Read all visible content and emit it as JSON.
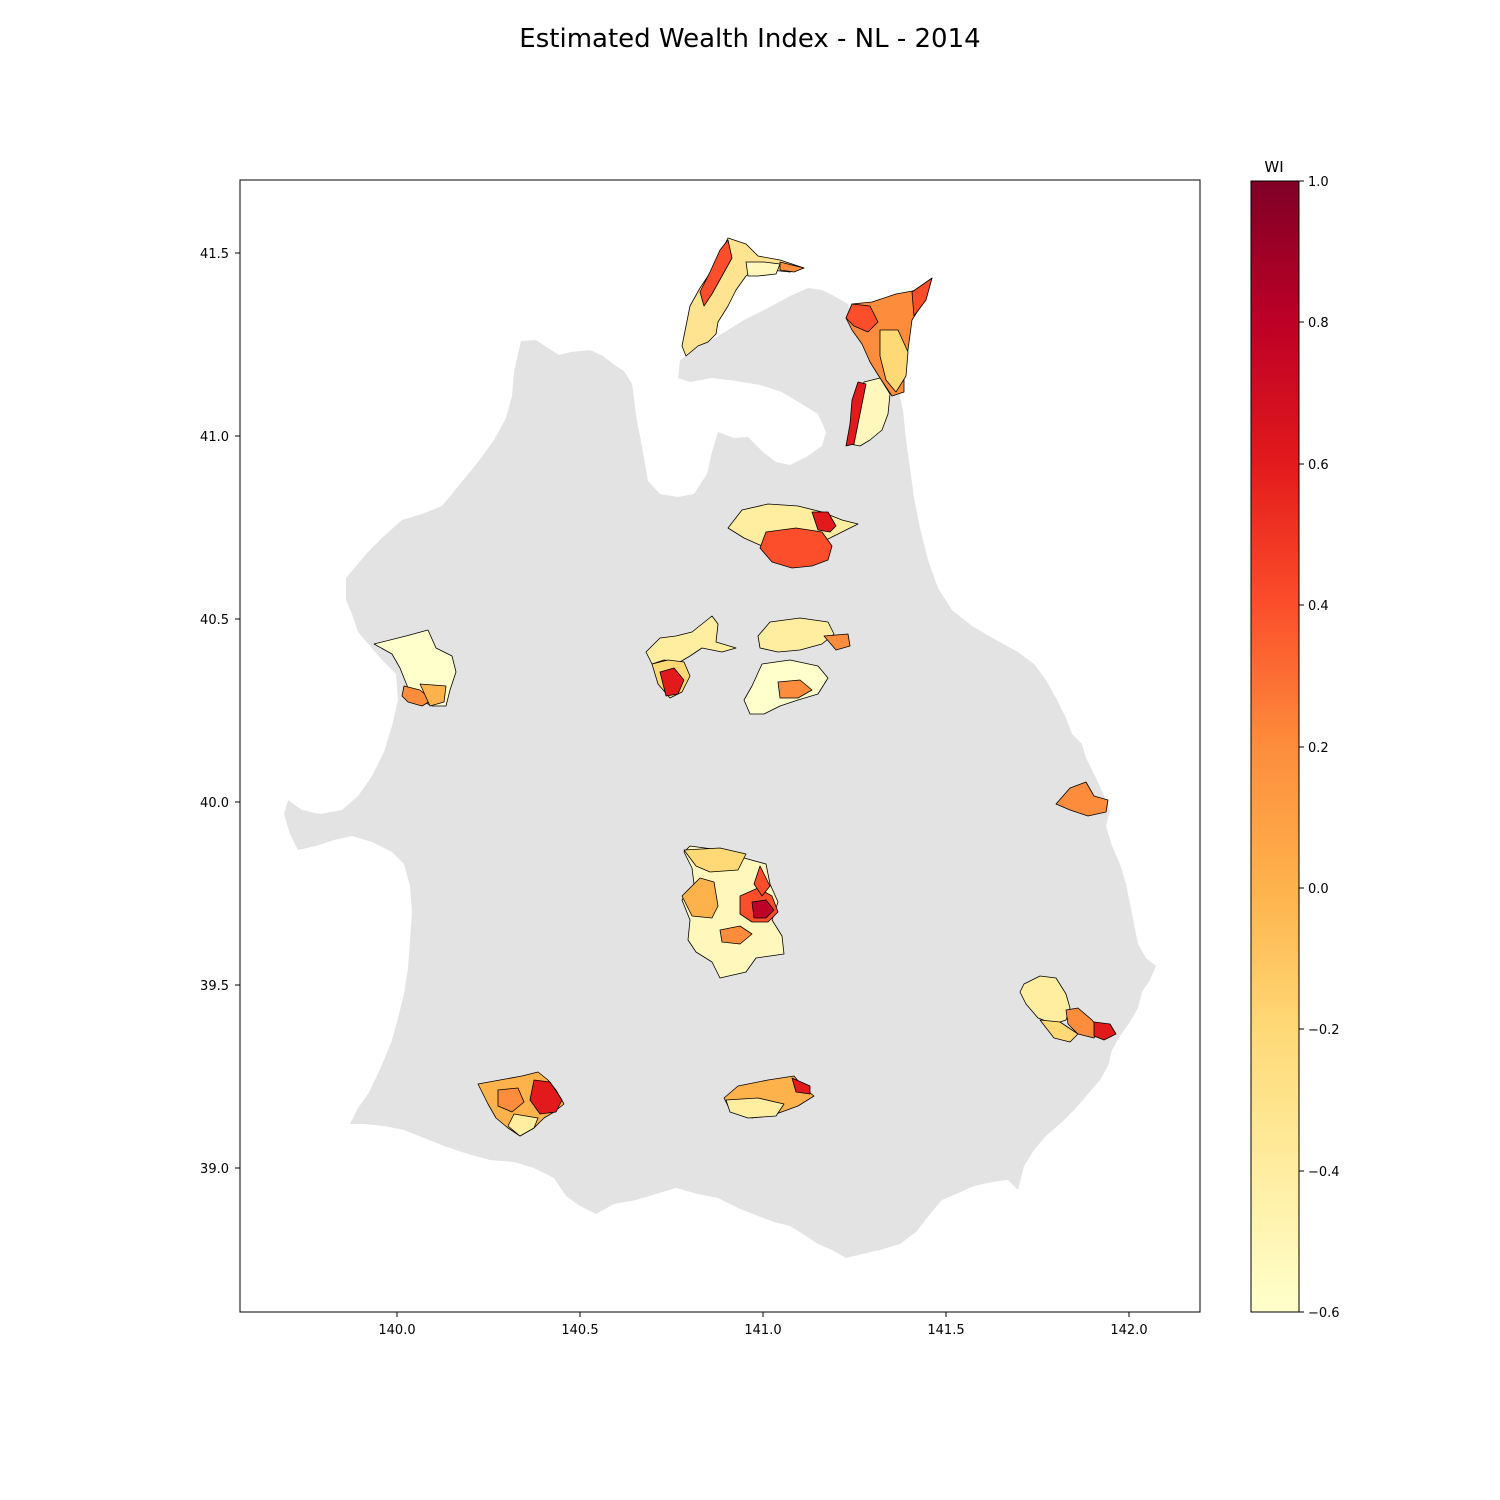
{
  "title": "Estimated Wealth Index - NL - 2014",
  "map": {
    "x_ticks": [
      "140.0",
      "140.5",
      "141.0",
      "141.5",
      "142.0"
    ],
    "y_ticks": [
      "41.5",
      "41.0",
      "40.5",
      "40.0",
      "39.5",
      "39.0"
    ],
    "xlim": [
      139.57,
      142.19
    ],
    "ylim": [
      38.62,
      41.7
    ],
    "land_color": "#e3e3e3",
    "outline_color": "#000000"
  },
  "colorbar": {
    "title": "WI",
    "ticks": [
      "1.0",
      "0.8",
      "0.6",
      "0.4",
      "0.2",
      "0.0",
      "−0.2",
      "−0.4",
      "−0.6"
    ],
    "range": [
      -0.6,
      1.0
    ],
    "colormap": "YlOrRd",
    "colors": [
      "#ffffcc",
      "#ffeda0",
      "#fed976",
      "#feb24c",
      "#fd8d3c",
      "#fc4e2a",
      "#e31a1c",
      "#bd0026",
      "#800026"
    ]
  }
}
